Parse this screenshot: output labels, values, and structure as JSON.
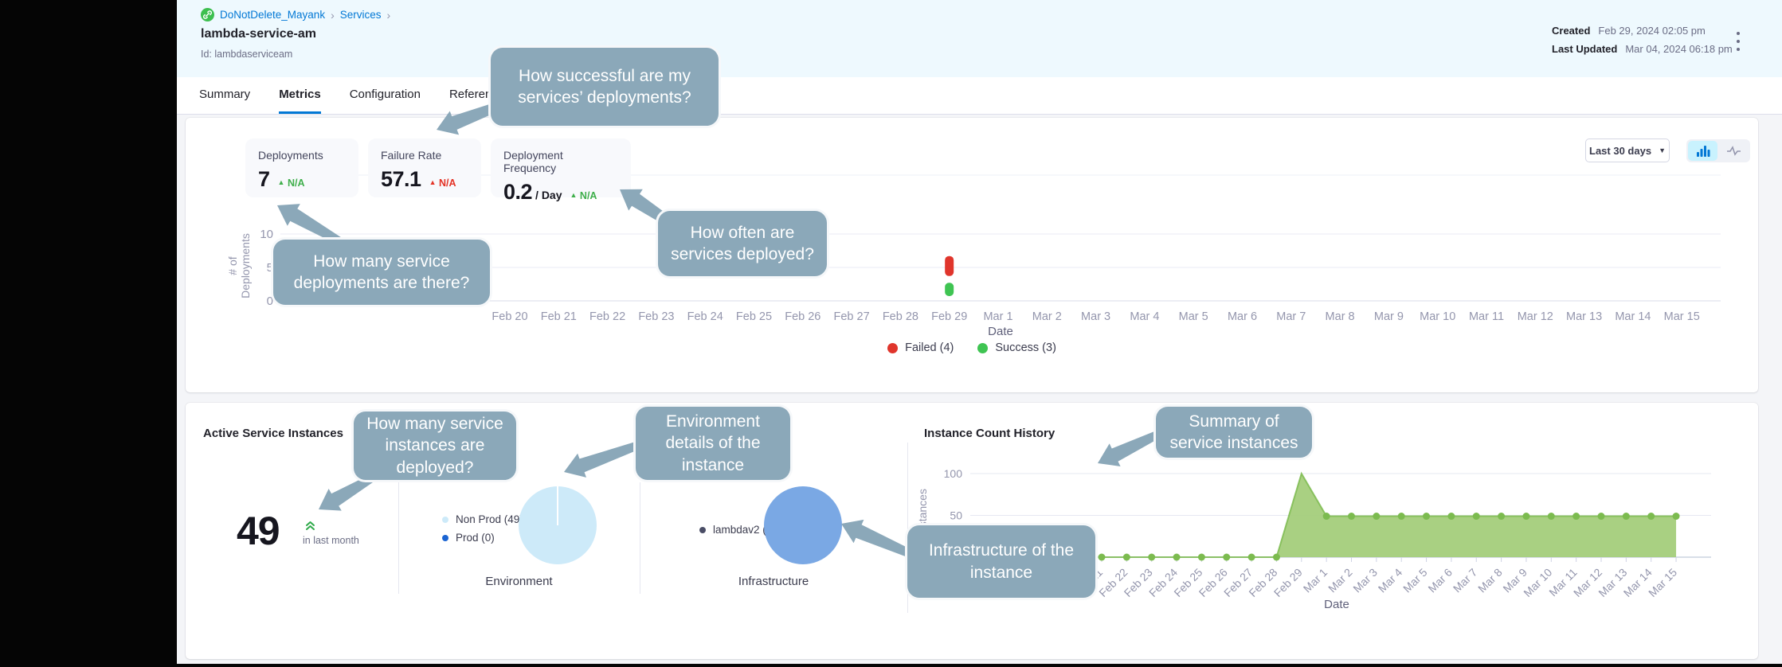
{
  "header": {
    "breadcrumb": {
      "project": "DoNotDelete_Mayank",
      "section": "Services",
      "separator": "›"
    },
    "title": "lambda-service-am",
    "id_line": "Id: lambdaserviceam",
    "created_label": "Created",
    "created_value": "Feb 29, 2024 02:05 pm",
    "updated_label": "Last Updated",
    "updated_value": "Mar 04, 2024 06:18 pm"
  },
  "tabs": [
    {
      "label": "Summary",
      "active": false
    },
    {
      "label": "Metrics",
      "active": true
    },
    {
      "label": "Configuration",
      "active": false
    },
    {
      "label": "Referenced",
      "active": false
    }
  ],
  "deployments_card": {
    "time_filter": "Last 30 days",
    "metrics": [
      {
        "label": "Deployments",
        "value": "7",
        "suffix": "",
        "trend": "N/A",
        "trend_color": "#3faf4b"
      },
      {
        "label": "Failure Rate",
        "value": "57.1",
        "suffix": "",
        "trend": "N/A",
        "trend_color": "#e43326"
      },
      {
        "label": "Deployment Frequency",
        "value": "0.2",
        "suffix": "/ Day",
        "trend": "N/A",
        "trend_color": "#3faf4b"
      }
    ],
    "legend": [
      {
        "label": "Failed (4)",
        "color": "#e0352c"
      },
      {
        "label": "Success (3)",
        "color": "#3fc452"
      }
    ]
  },
  "instances_card": {
    "title": "Active Service Instances",
    "count": "49",
    "count_caption": "in last month",
    "environment_caption": "Environment",
    "environment_legend": [
      {
        "label": "Non Prod (49)",
        "color": "#cdeaf9"
      },
      {
        "label": "Prod (0)",
        "color": "#1b64d2"
      }
    ],
    "infrastructure_caption": "Infrastructure",
    "infrastructure_legend": [
      {
        "label": "lambdav2 (49)",
        "color": "#4a4d66"
      }
    ],
    "history_title": "Instance Count History"
  },
  "callouts": [
    {
      "text": "How successful are my services’ deployments?"
    },
    {
      "text": "How often are services deployed?"
    },
    {
      "text": "How many service deployments are there?"
    },
    {
      "text": "How many service instances are deployed?"
    },
    {
      "text": "Environment details of the instance"
    },
    {
      "text": "Summary of service instances"
    },
    {
      "text": "Infrastructure of the instance"
    }
  ],
  "chart_data": [
    {
      "id": "deployments_by_date",
      "type": "bar",
      "stacked": true,
      "xlabel": "Date",
      "ylabel": "# of Deployments",
      "yticks": [
        0,
        5,
        10
      ],
      "ylim": [
        0,
        10
      ],
      "grid": true,
      "legend_position": "bottom",
      "categories": [
        "Feb 20",
        "Feb 21",
        "Feb 22",
        "Feb 23",
        "Feb 24",
        "Feb 25",
        "Feb 26",
        "Feb 27",
        "Feb 28",
        "Feb 29",
        "Mar 1",
        "Mar 2",
        "Mar 3",
        "Mar 4",
        "Mar 5",
        "Mar 6",
        "Mar 7",
        "Mar 8",
        "Mar 9",
        "Mar 10",
        "Mar 11",
        "Mar 12",
        "Mar 13",
        "Mar 14",
        "Mar 15"
      ],
      "series": [
        {
          "name": "Success",
          "color": "#3fc452",
          "values": [
            0,
            0,
            0,
            0,
            0,
            0,
            0,
            0,
            0,
            3,
            0,
            0,
            0,
            0,
            0,
            0,
            0,
            0,
            0,
            0,
            0,
            0,
            0,
            0,
            0
          ]
        },
        {
          "name": "Failed",
          "color": "#e0352c",
          "values": [
            0,
            0,
            0,
            0,
            0,
            0,
            0,
            0,
            0,
            4,
            0,
            0,
            0,
            0,
            0,
            0,
            0,
            0,
            0,
            0,
            0,
            0,
            0,
            0,
            0
          ]
        }
      ]
    },
    {
      "id": "environment_pie",
      "type": "pie",
      "title": "Environment",
      "labels": [
        "Non Prod",
        "Prod"
      ],
      "values": [
        49,
        0
      ],
      "colors": [
        "#cdeaf9",
        "#1b64d2"
      ]
    },
    {
      "id": "infrastructure_pie",
      "type": "pie",
      "title": "Infrastructure",
      "labels": [
        "lambdav2"
      ],
      "values": [
        49
      ],
      "colors": [
        "#7aa8e4"
      ]
    },
    {
      "id": "instance_count_history",
      "type": "area",
      "title": "Instance Count History",
      "xlabel": "Date",
      "ylabel": "Instances",
      "yticks": [
        50,
        100
      ],
      "ylim": [
        0,
        100
      ],
      "color": "#a4cd7b",
      "line_color": "#7cbb4f",
      "x": [
        "Feb 21",
        "Feb 22",
        "Feb 23",
        "Feb 24",
        "Feb 25",
        "Feb 26",
        "Feb 27",
        "Feb 28",
        "Feb 29",
        "Mar 1",
        "Mar 2",
        "Mar 3",
        "Mar 4",
        "Mar 5",
        "Mar 6",
        "Mar 7",
        "Mar 8",
        "Mar 9",
        "Mar 10",
        "Mar 11",
        "Mar 12",
        "Mar 13",
        "Mar 14",
        "Mar 15"
      ],
      "values": [
        0,
        0,
        0,
        0,
        0,
        0,
        0,
        0,
        100,
        49,
        49,
        49,
        49,
        49,
        49,
        49,
        49,
        49,
        49,
        49,
        49,
        49,
        49,
        49
      ]
    }
  ]
}
